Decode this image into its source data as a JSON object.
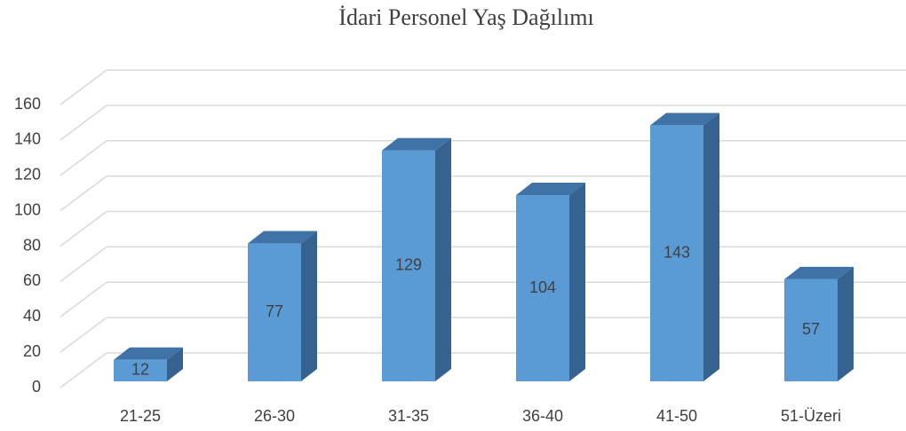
{
  "chart_data": {
    "type": "bar3d",
    "title": "İdari Personel Yaş Dağılımı",
    "categories": [
      "21-25",
      "26-30",
      "31-35",
      "36-40",
      "41-50",
      "51-Üzeri"
    ],
    "values": [
      12,
      77,
      129,
      104,
      143,
      57
    ],
    "color": "#5b9bd5",
    "ylim": [
      0,
      160
    ],
    "yticks": [
      0,
      20,
      40,
      60,
      80,
      100,
      120,
      140,
      160
    ],
    "grid": true
  }
}
